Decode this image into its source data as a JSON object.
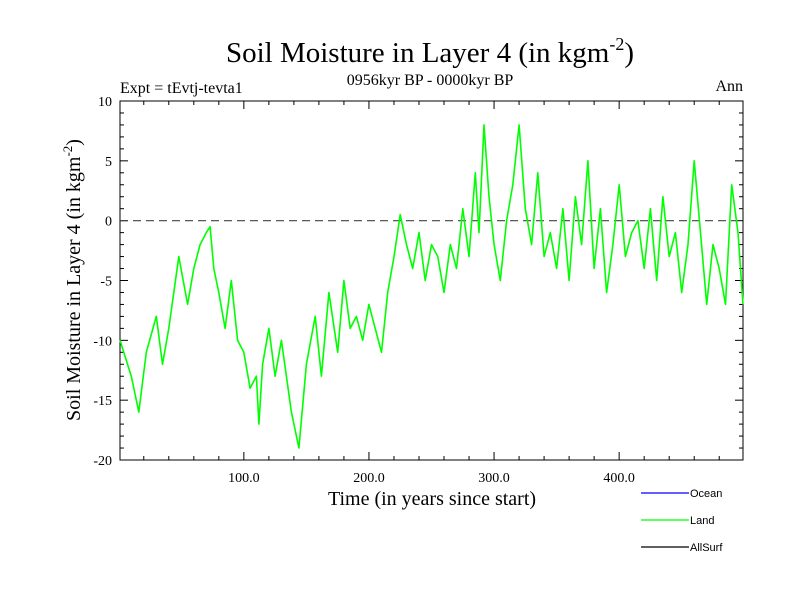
{
  "chart_data": {
    "type": "line",
    "title": "Soil Moisture in Layer 4 (in kgm",
    "title_sup": "-2",
    "title_close": ")",
    "subtitle": "0956kyr BP - 0000kyr BP",
    "expt_label": "Expt = tEvtj-tevta1",
    "season_label": "Ann",
    "xlabel": "Time (in years since start)",
    "ylabel": "Soil Moisture in Layer 4 (in kgm",
    "ylabel_sup": "-2",
    "ylabel_close": ")",
    "xlim": [
      1,
      499
    ],
    "ylim": [
      -20,
      10
    ],
    "xticks": [
      100,
      200,
      300,
      400
    ],
    "xtick_labels": [
      "100.0",
      "200.0",
      "300.0",
      "400.0"
    ],
    "yticks": [
      -20,
      -15,
      -10,
      -5,
      0,
      5,
      10
    ],
    "ytick_labels": [
      "-20",
      "-15",
      "-10",
      "-5",
      "0",
      "5",
      "10"
    ],
    "reference_line": 0,
    "legend": [
      {
        "name": "Ocean",
        "color": "#0000ff"
      },
      {
        "name": "Land",
        "color": "#00ff00"
      },
      {
        "name": "AllSurf",
        "color": "#000000"
      }
    ],
    "series": [
      {
        "name": "Land",
        "color": "#00ff00",
        "x": [
          1,
          10,
          16,
          22,
          30,
          35,
          40,
          48,
          55,
          60,
          65,
          70,
          73,
          76,
          80,
          85,
          90,
          95,
          100,
          105,
          110,
          112,
          115,
          120,
          125,
          130,
          138,
          144,
          150,
          157,
          162,
          168,
          175,
          180,
          185,
          190,
          195,
          200,
          205,
          210,
          215,
          220,
          225,
          230,
          235,
          240,
          245,
          250,
          255,
          260,
          265,
          270,
          275,
          280,
          285,
          288,
          292,
          296,
          300,
          305,
          310,
          315,
          320,
          325,
          330,
          335,
          340,
          345,
          350,
          355,
          360,
          365,
          370,
          375,
          380,
          385,
          390,
          395,
          400,
          405,
          410,
          415,
          420,
          425,
          430,
          435,
          440,
          445,
          450,
          455,
          460,
          465,
          470,
          475,
          480,
          485,
          490,
          495,
          499
        ],
        "values": [
          -10,
          -13,
          -16,
          -11,
          -8,
          -12,
          -9,
          -3,
          -7,
          -4,
          -2,
          -1,
          -0.5,
          -4,
          -6,
          -9,
          -5,
          -10,
          -11,
          -14,
          -13,
          -17,
          -12,
          -9,
          -13,
          -10,
          -16,
          -19,
          -12,
          -8,
          -13,
          -6,
          -11,
          -5,
          -9,
          -8,
          -10,
          -7,
          -9,
          -11,
          -6,
          -3,
          0.5,
          -2,
          -4,
          -1,
          -5,
          -2,
          -3,
          -6,
          -2,
          -4,
          1,
          -3,
          4,
          -1,
          8,
          2,
          -2,
          -5,
          0,
          3,
          8,
          1,
          -2,
          4,
          -3,
          -1,
          -4,
          1,
          -5,
          2,
          -2,
          5,
          -4,
          1,
          -6,
          -2,
          3,
          -3,
          -1,
          0,
          -4,
          1,
          -5,
          2,
          -3,
          -1,
          -6,
          -2,
          5,
          -1,
          -7,
          -2,
          -4,
          -7,
          3,
          -1,
          -7
        ]
      }
    ]
  }
}
